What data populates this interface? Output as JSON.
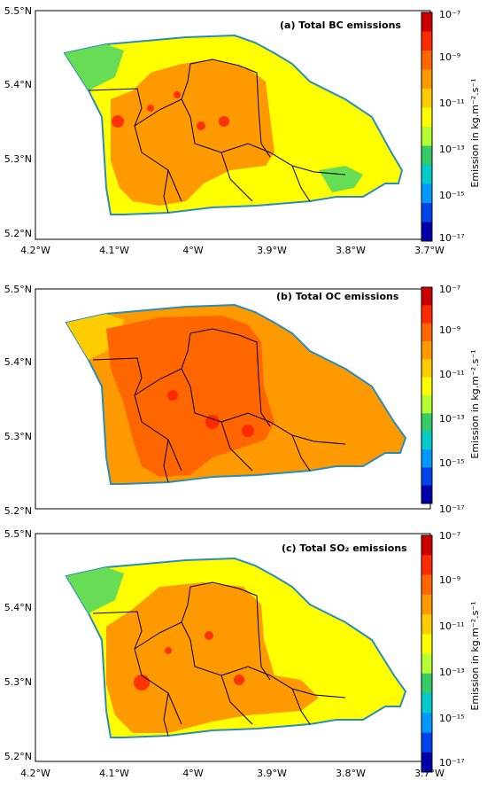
{
  "x_ticks": [
    "4.2°W",
    "4.1°W",
    "4°W",
    "3.9°W",
    "3.8°W",
    "3.7°W"
  ],
  "y_ticks": [
    "5.5°N",
    "5.4°N",
    "5.3°N",
    "5.2°N"
  ],
  "colorbar": {
    "title": "Emission in  kg.m⁻².s⁻¹",
    "ticks": [
      "10⁻⁷",
      "10⁻⁹",
      "10⁻¹¹",
      "10⁻¹³",
      "10⁻¹⁵",
      "10⁻¹⁷"
    ],
    "colors": [
      "#cc0000",
      "#ff2a00",
      "#ff6600",
      "#ff9900",
      "#ffcc00",
      "#ffff00",
      "#b3ff33",
      "#33cc66",
      "#00cccc",
      "#0099ff",
      "#0044ee",
      "#0000aa"
    ]
  },
  "colors": {
    "outline": "#2a8db8",
    "boundary": "#000000",
    "background": "#ffffff"
  },
  "panels": [
    {
      "title": "(a) Total BC emissions",
      "base": "#ffff00",
      "west": "#66dd55",
      "core": "#ff9900",
      "hot": "#ff3300"
    },
    {
      "title": "(b) Total OC emissions",
      "base": "#ff9900",
      "west": "#ffcc00",
      "core": "#ff6600",
      "hot": "#ff2a00"
    },
    {
      "title": "(c) Total SO₂ emissions",
      "base": "#ffff00",
      "west": "#66dd55",
      "core": "#ff9900",
      "hot": "#ff3300"
    }
  ]
}
